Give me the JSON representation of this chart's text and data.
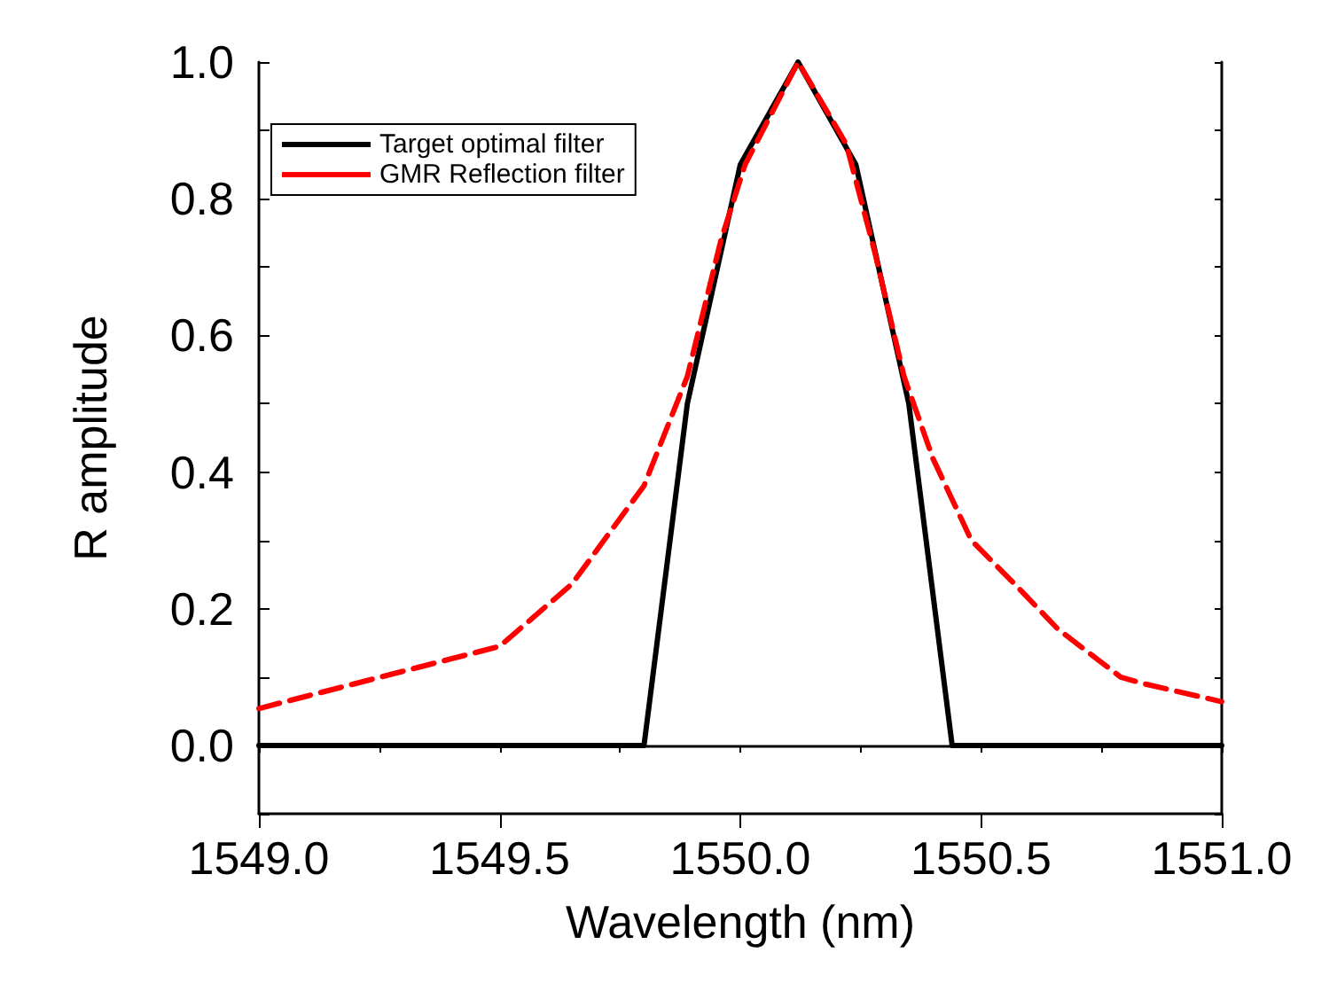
{
  "chart_data": {
    "type": "line",
    "xlabel": "Wavelength (nm)",
    "ylabel": "R amplitude",
    "xlim": [
      1549,
      1551
    ],
    "ylim": [
      -0.1,
      1.0
    ],
    "xticks": [
      {
        "value": 1549,
        "label": "1549.0"
      },
      {
        "value": 1549.5,
        "label": "1549.5"
      },
      {
        "value": 1550,
        "label": "1550.0"
      },
      {
        "value": 1550.5,
        "label": "1550.5"
      },
      {
        "value": 1551,
        "label": "1551.0"
      }
    ],
    "yticks": [
      {
        "value": 0,
        "label": "0.0"
      },
      {
        "value": 0.2,
        "label": "0.2"
      },
      {
        "value": 0.4,
        "label": "0.4"
      },
      {
        "value": 0.6,
        "label": "0.6"
      },
      {
        "value": 0.8,
        "label": "0.8"
      },
      {
        "value": 1,
        "label": "1.0"
      }
    ],
    "legend": "top left",
    "marker": "none",
    "series": [
      {
        "name": "Target optimal filter",
        "color": "#000000",
        "line_style": "solid",
        "x": [
          1549,
          1549.8,
          1549.89,
          1550,
          1550.12,
          1550.24,
          1550.35,
          1550.44,
          1551
        ],
        "values": [
          0,
          0,
          0.5,
          0.85,
          1,
          0.85,
          0.5,
          0,
          0
        ]
      },
      {
        "name": "GMR Reflection filter",
        "color": "#ff0000",
        "line_style": "dashed",
        "x": [
          1549,
          1549.5,
          1549.65,
          1549.8,
          1549.89,
          1549.96,
          1550.01,
          1550.12,
          1550.22,
          1550.28,
          1550.34,
          1550.4,
          1550.48,
          1550.57,
          1550.66,
          1550.79,
          1550.84,
          1551
        ],
        "values": [
          0.054,
          0.145,
          0.236,
          0.38,
          0.54,
          0.74,
          0.85,
          1,
          0.88,
          0.72,
          0.54,
          0.42,
          0.3,
          0.236,
          0.17,
          0.1,
          0.09,
          0.064
        ]
      }
    ]
  }
}
